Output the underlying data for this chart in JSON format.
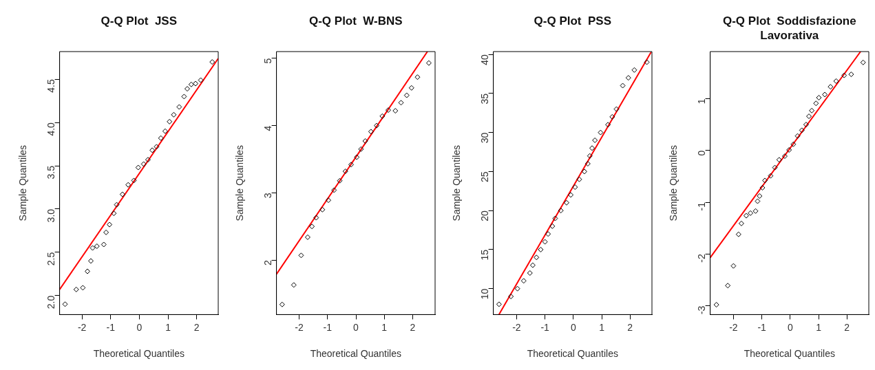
{
  "chart_data": [
    {
      "type": "scatter",
      "title": "Q-Q Plot  JSS",
      "xlabel": "Theoretical Quantiles",
      "ylabel": "Sample Quantiles",
      "xlim": [
        -2.78,
        2.75
      ],
      "ylim": [
        1.78,
        4.82
      ],
      "xticks": [
        -2,
        -1,
        0,
        1,
        2
      ],
      "yticks": [
        {
          "value": 2,
          "label": "2.0"
        },
        2.5,
        {
          "value": 3,
          "label": "3.0"
        },
        3.5,
        {
          "value": 4,
          "label": "4.0"
        },
        4.5
      ],
      "grid": false,
      "legend": false,
      "marker": "diamond",
      "series": [
        {
          "type": "scatter",
          "color": "#000000",
          "x": [
            -2.59,
            -2.2,
            -1.97,
            -1.81,
            -1.69,
            -1.63,
            -1.48,
            -1.24,
            -1.16,
            -1.04,
            -0.89,
            -0.79,
            -0.59,
            -0.39,
            -0.19,
            -0.04,
            0.15,
            0.3,
            0.45,
            0.6,
            0.75,
            0.9,
            1.05,
            1.2,
            1.39,
            1.56,
            1.67,
            1.81,
            1.96,
            2.14,
            2.54
          ],
          "values": [
            1.9,
            2.07,
            2.09,
            2.28,
            2.4,
            2.55,
            2.57,
            2.59,
            2.73,
            2.82,
            2.95,
            3.05,
            3.17,
            3.28,
            3.33,
            3.48,
            3.52,
            3.57,
            3.68,
            3.72,
            3.82,
            3.9,
            4.01,
            4.09,
            4.18,
            4.3,
            4.39,
            4.44,
            4.45,
            4.49,
            4.7
          ]
        },
        {
          "type": "line",
          "color": "#ff0000",
          "marker": "none",
          "x": [
            -2.78,
            2.75
          ],
          "values": [
            2.07,
            4.74
          ]
        }
      ]
    },
    {
      "type": "scatter",
      "title": "Q-Q Plot  W-BNS",
      "xlabel": "Theoretical Quantiles",
      "ylabel": "Sample Quantiles",
      "xlim": [
        -2.8,
        2.79
      ],
      "ylim": [
        1.19,
        5.1
      ],
      "xticks": [
        -2,
        -1,
        0,
        1,
        2
      ],
      "yticks": [
        2,
        3,
        4,
        5
      ],
      "grid": false,
      "legend": false,
      "marker": "diamond",
      "series": [
        {
          "type": "scatter",
          "color": "#000000",
          "x": [
            -2.6,
            -2.19,
            -1.93,
            -1.7,
            -1.55,
            -1.4,
            -1.18,
            -0.97,
            -0.77,
            -0.57,
            -0.37,
            -0.17,
            0.03,
            0.18,
            0.33,
            0.53,
            0.73,
            0.93,
            1.14,
            1.39,
            1.59,
            1.79,
            1.96,
            2.17,
            2.57
          ],
          "values": [
            1.34,
            1.63,
            2.07,
            2.34,
            2.5,
            2.63,
            2.75,
            2.89,
            3.04,
            3.18,
            3.32,
            3.42,
            3.53,
            3.65,
            3.77,
            3.91,
            4,
            4.14,
            4.23,
            4.22,
            4.34,
            4.45,
            4.56,
            4.72,
            4.93
          ]
        },
        {
          "type": "line",
          "color": "#ff0000",
          "marker": "none",
          "x": [
            -2.8,
            2.52
          ],
          "values": [
            1.79,
            5.1
          ]
        }
      ]
    },
    {
      "type": "scatter",
      "title": "Q-Q Plot  PSS",
      "xlabel": "Theoretical Quantiles",
      "ylabel": "Sample Quantiles",
      "xlim": [
        -2.82,
        2.77
      ],
      "ylim": [
        6.68,
        40.36
      ],
      "xticks": [
        -2,
        -1,
        0,
        1,
        2
      ],
      "yticks": [
        10,
        15,
        20,
        25,
        30,
        35,
        40
      ],
      "grid": false,
      "legend": false,
      "marker": "diamond",
      "series": [
        {
          "type": "scatter",
          "color": "#000000",
          "x": [
            -2.62,
            -2.2,
            -1.97,
            -1.75,
            -1.53,
            -1.43,
            -1.3,
            -1.15,
            -1,
            -0.89,
            -0.74,
            -0.64,
            -0.44,
            -0.24,
            -0.09,
            0.06,
            0.21,
            0.39,
            0.51,
            0.58,
            0.66,
            0.76,
            0.96,
            1.22,
            1.37,
            1.52,
            1.74,
            1.94,
            2.15,
            2.59
          ],
          "values": [
            8,
            9,
            10,
            11,
            12,
            13,
            14,
            15,
            16,
            17,
            18,
            19,
            20,
            21,
            22,
            23,
            24,
            25,
            26,
            27,
            28,
            29,
            30,
            31,
            32,
            33,
            36,
            37,
            38,
            39
          ]
        },
        {
          "type": "line",
          "color": "#ff0000",
          "marker": "none",
          "x": [
            -2.62,
            2.74
          ],
          "values": [
            6.7,
            40.3
          ]
        }
      ]
    },
    {
      "type": "scatter",
      "title": "Q-Q Plot  Soddisfazione Lavorativa",
      "xlabel": "Theoretical Quantiles",
      "ylabel": "Sample Quantiles",
      "xlim": [
        -2.82,
        2.77
      ],
      "ylim": [
        -3.17,
        1.91
      ],
      "xticks": [
        -2,
        -1,
        0,
        1,
        2
      ],
      "yticks": [
        -3,
        -2,
        -1,
        0,
        1
      ],
      "grid": false,
      "legend": false,
      "marker": "diamond",
      "series": [
        {
          "type": "scatter",
          "color": "#000000",
          "x": [
            -2.6,
            -2.2,
            -2,
            -1.82,
            -1.72,
            -1.55,
            -1.4,
            -1.22,
            -1.15,
            -1.08,
            -0.98,
            -0.89,
            -0.69,
            -0.54,
            -0.39,
            -0.19,
            -0.04,
            0.11,
            0.26,
            0.41,
            0.56,
            0.66,
            0.76,
            0.91,
            1.01,
            1.22,
            1.42,
            1.62,
            1.9,
            2.15,
            2.57
          ],
          "values": [
            -2.98,
            -2.61,
            -2.23,
            -1.62,
            -1.41,
            -1.26,
            -1.21,
            -1.17,
            -0.98,
            -0.88,
            -0.72,
            -0.58,
            -0.49,
            -0.33,
            -0.18,
            -0.11,
            0.01,
            0.12,
            0.28,
            0.39,
            0.5,
            0.66,
            0.77,
            0.91,
            1.02,
            1.08,
            1.23,
            1.34,
            1.45,
            1.47,
            1.7
          ]
        },
        {
          "type": "line",
          "color": "#ff0000",
          "marker": "none",
          "x": [
            -2.82,
            2.48
          ],
          "values": [
            -2.07,
            1.91
          ]
        }
      ]
    }
  ]
}
